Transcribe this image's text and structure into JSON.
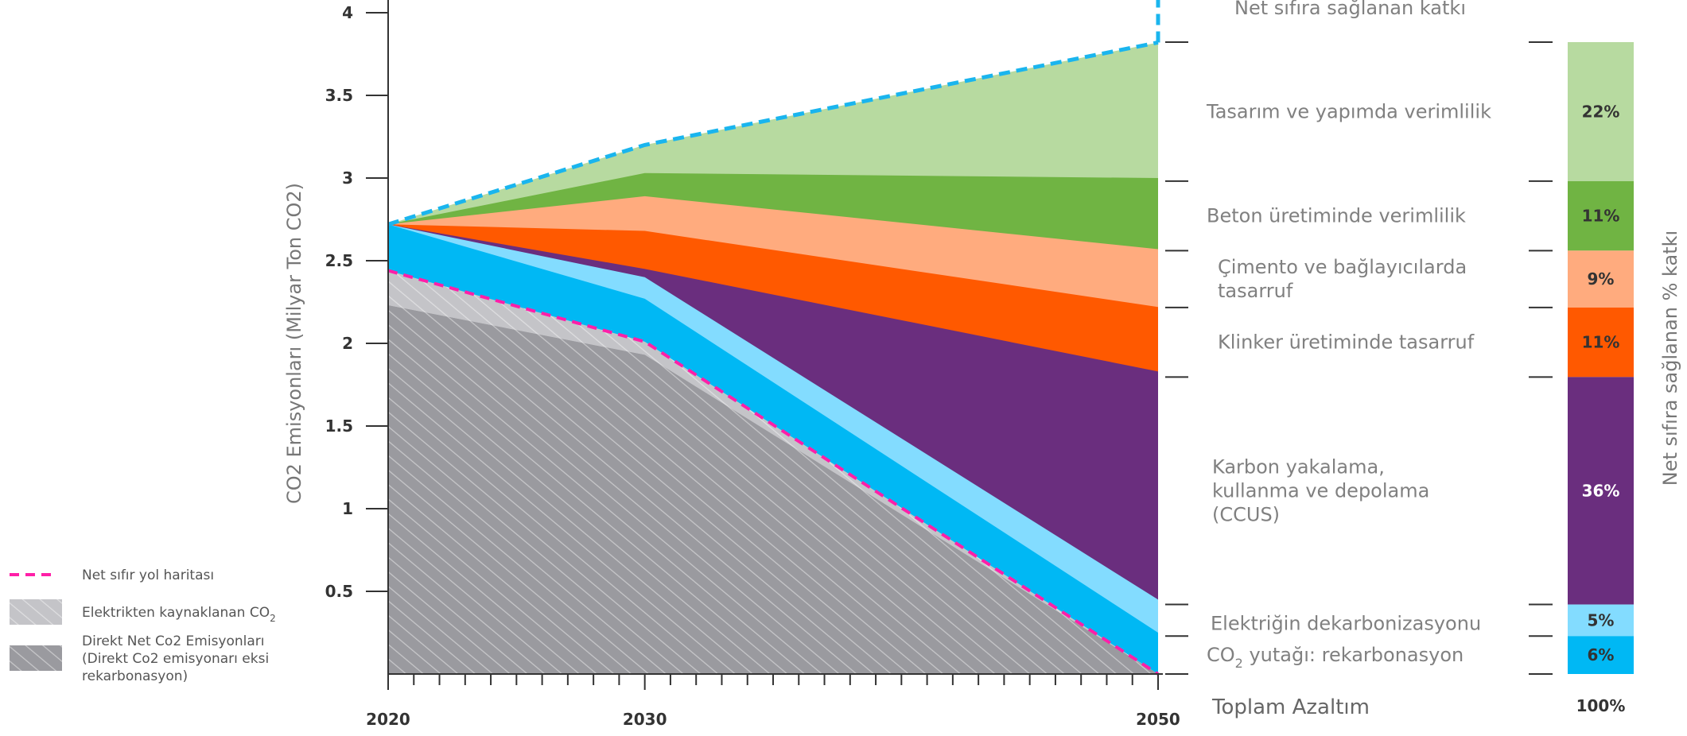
{
  "chart_data": {
    "type": "area",
    "x_ticks": [
      2020,
      2030,
      2050
    ],
    "y_ticks": [
      "4",
      "3.5",
      "3",
      "2.5",
      "2",
      "1.5",
      "1",
      "0.5"
    ],
    "ylabel": "CO2 Emisyonları (Milyar Ton CO2)",
    "ylim": [
      0,
      4
    ],
    "xlim": [
      2020,
      2050
    ],
    "bands": [
      {
        "key": "direkt",
        "color": "#9a9a9f",
        "values": [
          [
            2020,
            2.23
          ],
          [
            2030,
            1.93
          ],
          [
            2050,
            0
          ]
        ]
      },
      {
        "key": "elektrikten",
        "color": "#c4c4c8",
        "values": [
          [
            2020,
            2.44
          ],
          [
            2030,
            2.01
          ],
          [
            2050,
            0
          ]
        ]
      },
      {
        "key": "rekarbonasyon",
        "color": "#00b8f4",
        "values": [
          [
            2020,
            2.72
          ],
          [
            2030,
            2.27
          ],
          [
            2050,
            0.25
          ]
        ]
      },
      {
        "key": "elektrik_dekarb",
        "color": "#83dcff",
        "values": [
          [
            2020,
            2.72
          ],
          [
            2030,
            2.4
          ],
          [
            2050,
            0.45
          ]
        ]
      },
      {
        "key": "ccus",
        "color": "#6a2e7e",
        "values": [
          [
            2020,
            2.72
          ],
          [
            2030,
            2.45
          ],
          [
            2050,
            1.83
          ]
        ]
      },
      {
        "key": "klinker",
        "color": "#ff5900",
        "values": [
          [
            2020,
            2.72
          ],
          [
            2030,
            2.68
          ],
          [
            2050,
            2.22
          ]
        ]
      },
      {
        "key": "cimento",
        "color": "#ffab7e",
        "values": [
          [
            2020,
            2.72
          ],
          [
            2030,
            2.89
          ],
          [
            2050,
            2.57
          ]
        ]
      },
      {
        "key": "beton",
        "color": "#70b443",
        "values": [
          [
            2020,
            2.72
          ],
          [
            2030,
            3.03
          ],
          [
            2050,
            3.0
          ]
        ]
      },
      {
        "key": "tasarim",
        "color": "#b7daa0",
        "values": [
          [
            2020,
            2.72
          ],
          [
            2030,
            3.2
          ],
          [
            2050,
            3.82
          ]
        ]
      }
    ],
    "net_zero_line": {
      "color": "#ff1fa8",
      "values": [
        [
          2020,
          2.44
        ],
        [
          2030,
          2.01
        ],
        [
          2050,
          0
        ]
      ]
    },
    "bau_line": {
      "color": "#1ab5ee",
      "values": [
        [
          2020,
          2.72
        ],
        [
          2030,
          3.2
        ],
        [
          2050,
          3.82
        ]
      ]
    },
    "right_header": "Net sıfıra sağlanan katkı",
    "categories": [
      {
        "lines": [
          "Tasarım ve yapımda verimlilik"
        ]
      },
      {
        "lines": [
          "Beton üretiminde verimlilik"
        ]
      },
      {
        "lines": [
          "Çimento ve bağlayıcılarda",
          "tasarruf"
        ]
      },
      {
        "lines": [
          "Klinker üretiminde tasarruf"
        ]
      },
      {
        "lines": [
          "Karbon yakalama,",
          "kullanma ve depolama",
          "(CCUS)"
        ]
      },
      {
        "lines": [
          "Elektriğin dekarbonizasyonu"
        ]
      },
      {
        "lines": [
          "CO",
          "2",
          " yutağı: rekarbonasyon"
        ]
      }
    ],
    "total_label": "Toplam Azaltım",
    "stack_bar": {
      "axis_label": "Net sıfıra sağlanan % katkı",
      "total": "100%",
      "segments": [
        {
          "label": "22%",
          "value": 22,
          "color": "#b7daa0",
          "text_color": "#333333"
        },
        {
          "label": "11%",
          "value": 11,
          "color": "#70b443",
          "text_color": "#333333"
        },
        {
          "label": "9%",
          "value": 9,
          "color": "#ffab7e",
          "text_color": "#333333"
        },
        {
          "label": "11%",
          "value": 11,
          "color": "#ff5900",
          "text_color": "#333333"
        },
        {
          "label": "36%",
          "value": 36,
          "color": "#6a2e7e",
          "text_color": "#ffffff"
        },
        {
          "label": "5%",
          "value": 5,
          "color": "#83dcff",
          "text_color": "#333333"
        },
        {
          "label": "6%",
          "value": 6,
          "color": "#00b8f4",
          "text_color": "#333333"
        }
      ]
    },
    "legend": [
      {
        "kind": "dash",
        "color": "#ff1fa8",
        "lines": [
          "Net sıfır yol haritası"
        ]
      },
      {
        "kind": "hatch-light",
        "color": "#c4c4c8",
        "lines": [
          "Elektrikten kaynaklanan CO",
          "2"
        ]
      },
      {
        "kind": "hatch-dark",
        "color": "#9a9a9f",
        "lines": [
          "Direkt Net Co2 Emisyonları",
          "(Direkt Co2 emisyonarı eksi",
          "rekarbonasyon)"
        ]
      }
    ]
  }
}
